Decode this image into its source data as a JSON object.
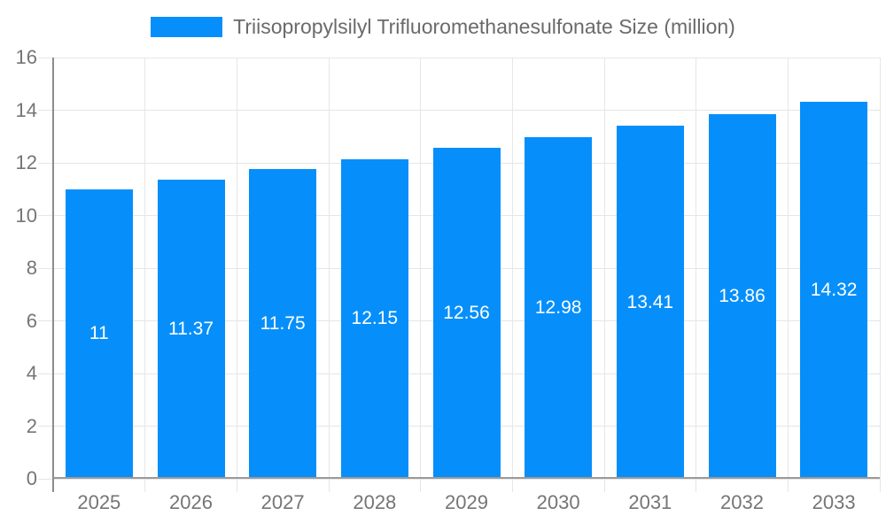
{
  "chart_data": {
    "type": "bar",
    "title": "Triisopropylsilyl Trifluoromethanesulfonate Size (million)",
    "categories": [
      "2025",
      "2026",
      "2027",
      "2028",
      "2029",
      "2030",
      "2031",
      "2032",
      "2033"
    ],
    "values": [
      11,
      11.37,
      11.75,
      12.15,
      12.56,
      12.98,
      13.41,
      13.86,
      14.32
    ],
    "value_labels": [
      "11",
      "11.37",
      "11.75",
      "12.15",
      "12.56",
      "12.98",
      "13.41",
      "13.86",
      "14.32"
    ],
    "xlabel": "",
    "ylabel": "",
    "ylim": [
      0,
      16
    ],
    "ytick_step": 2,
    "ytick_labels": [
      "0",
      "2",
      "4",
      "6",
      "8",
      "10",
      "12",
      "14",
      "16"
    ],
    "grid": true,
    "legend_position": "top-center",
    "colors": {
      "bar": "#068FFA",
      "grid": "#e6e6e6",
      "axis_line": "#9a9a9a",
      "yaxis_line": "#8c8c8c",
      "tick_label": "#757575",
      "title": "#6a6a6a",
      "value_label": "#ffffff",
      "background": "#ffffff"
    }
  }
}
